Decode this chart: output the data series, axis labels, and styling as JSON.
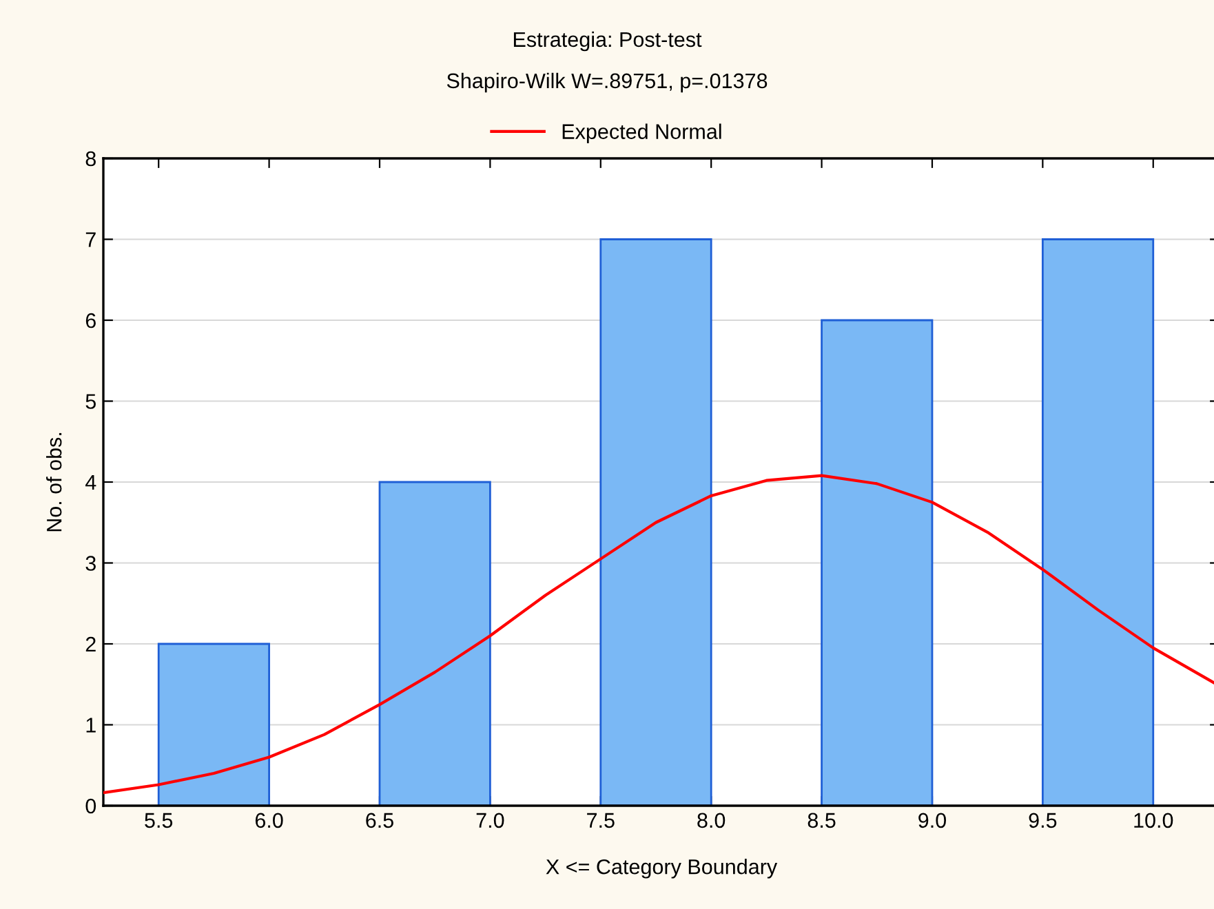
{
  "chart_data": {
    "type": "bar",
    "title": "Estrategia: Post-test",
    "subtitle": "Shapiro-Wilk W=.89751, p=.01378",
    "xlabel": "X <= Category Boundary",
    "ylabel": "No. of obs.",
    "x": [
      5.75,
      6.75,
      7.75,
      8.75,
      9.75
    ],
    "xlim": [
      5.25,
      10.3
    ],
    "xticks": [
      {
        "value": 5.5,
        "label": "5.5"
      },
      {
        "value": 6.0,
        "label": "6.0"
      },
      {
        "value": 6.5,
        "label": "6.5"
      },
      {
        "value": 7.0,
        "label": "7.0"
      },
      {
        "value": 7.5,
        "label": "7.5"
      },
      {
        "value": 8.0,
        "label": "8.0"
      },
      {
        "value": 8.5,
        "label": "8.5"
      },
      {
        "value": 9.0,
        "label": "9.0"
      },
      {
        "value": 9.5,
        "label": "9.5"
      },
      {
        "value": 10.0,
        "label": "10.0"
      }
    ],
    "ylim": [
      0,
      8
    ],
    "yticks": [
      0,
      1,
      2,
      3,
      4,
      5,
      6,
      7,
      8
    ],
    "grid": "y",
    "legend": "top",
    "series": [
      {
        "color": "#7ab8f5",
        "values": [
          2,
          4,
          7,
          6,
          7
        ]
      },
      {
        "name": "Expected Normal",
        "type": "line",
        "color": "#ff0000",
        "x": [
          5.25,
          5.5,
          5.75,
          6.0,
          6.25,
          6.5,
          6.75,
          7.0,
          7.25,
          7.5,
          7.75,
          8.0,
          8.25,
          8.5,
          8.75,
          9.0,
          9.25,
          9.5,
          9.75,
          10.0,
          10.3
        ],
        "values": [
          0.16,
          0.26,
          0.4,
          0.6,
          0.88,
          1.25,
          1.65,
          2.1,
          2.6,
          3.05,
          3.5,
          3.83,
          4.02,
          4.08,
          3.98,
          3.75,
          3.38,
          2.92,
          2.42,
          1.95,
          1.48
        ]
      }
    ]
  }
}
